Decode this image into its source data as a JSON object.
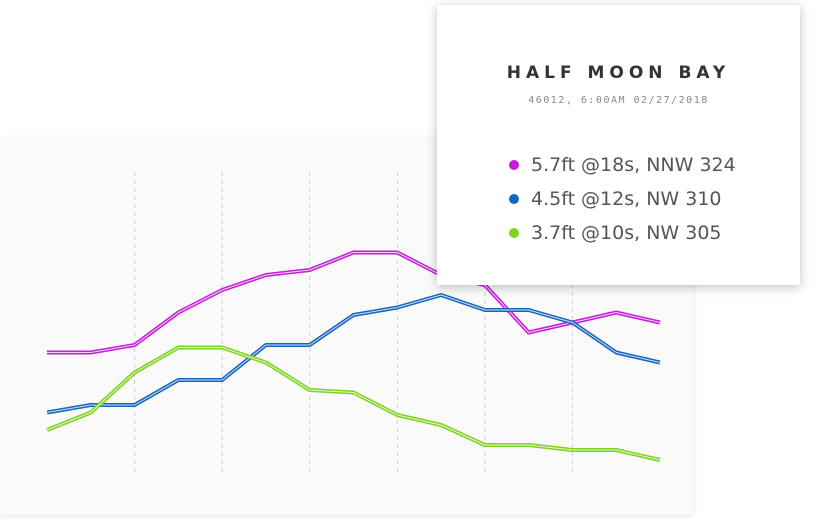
{
  "chart_data": {
    "type": "line",
    "title": "HALF MOON BAY",
    "subtitle": "46012, 6:00AM 02/27/2018",
    "categories": [
      null,
      null,
      null,
      null,
      null,
      null,
      null,
      null,
      null,
      null,
      null,
      null,
      null,
      null,
      null
    ],
    "ylim": [
      0,
      100
    ],
    "grid": true,
    "series": [
      {
        "name": "5.7ft @18s, NNW 324",
        "color": "#c41fd8",
        "values": [
          51,
          51,
          54,
          67,
          76,
          82,
          84,
          91,
          91,
          82,
          78,
          59,
          63,
          67,
          63
        ]
      },
      {
        "name": "4.5ft @12s, NW 310",
        "color": "#1565c0",
        "values": [
          27,
          30,
          30,
          40,
          40,
          54,
          54,
          66,
          69,
          74,
          68,
          68,
          63,
          51,
          47
        ]
      },
      {
        "name": "3.7ft @10s, NW 305",
        "color": "#7ed321",
        "values": [
          20,
          27,
          43,
          53,
          53,
          47,
          36,
          35,
          26,
          22,
          14,
          14,
          12,
          12,
          8
        ]
      }
    ]
  }
}
